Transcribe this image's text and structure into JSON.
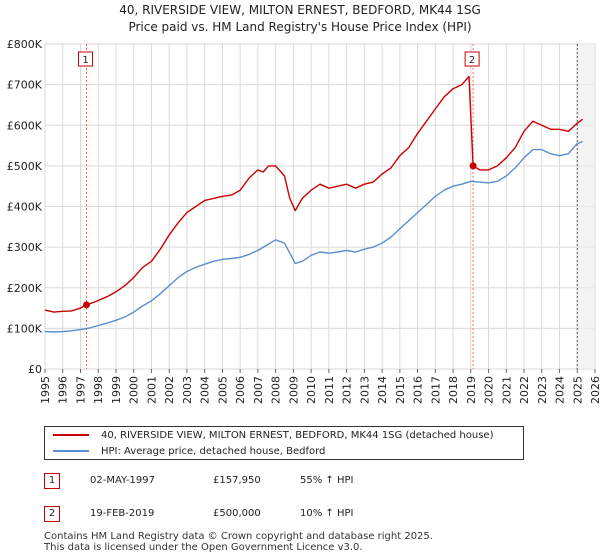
{
  "chart_data": {
    "type": "line",
    "title": "40, RIVERSIDE VIEW, MILTON ERNEST, BEDFORD, MK44 1SG",
    "subtitle": "Price paid vs. HM Land Registry's House Price Index (HPI)",
    "xlim": [
      1995,
      2026
    ],
    "ylim": [
      0,
      800000
    ],
    "y_ticks": [
      {
        "value": 0,
        "label": "£0"
      },
      {
        "value": 100000,
        "label": "£100K"
      },
      {
        "value": 200000,
        "label": "£200K"
      },
      {
        "value": 300000,
        "label": "£300K"
      },
      {
        "value": 400000,
        "label": "£400K"
      },
      {
        "value": 500000,
        "label": "£500K"
      },
      {
        "value": 600000,
        "label": "£600K"
      },
      {
        "value": 700000,
        "label": "£700K"
      },
      {
        "value": 800000,
        "label": "£800K"
      }
    ],
    "x_ticks": [
      "1995",
      "1996",
      "1997",
      "1998",
      "1999",
      "2000",
      "2001",
      "2002",
      "2003",
      "2004",
      "2005",
      "2006",
      "2007",
      "2008",
      "2009",
      "2010",
      "2011",
      "2012",
      "2013",
      "2014",
      "2015",
      "2016",
      "2017",
      "2018",
      "2019",
      "2020",
      "2021",
      "2022",
      "2023",
      "2024",
      "2025",
      "2026"
    ],
    "series": [
      {
        "name": "40, RIVERSIDE VIEW, MILTON ERNEST, BEDFORD, MK44 1SG (detached house)",
        "color": "#cc0000",
        "x": [
          1995.0,
          1995.5,
          1996.0,
          1996.5,
          1997.0,
          1997.34,
          1997.8,
          1998.5,
          1999.0,
          1999.5,
          2000.0,
          2000.5,
          2001.0,
          2001.5,
          2002.0,
          2002.5,
          2003.0,
          2003.5,
          2004.0,
          2004.5,
          2005.0,
          2005.5,
          2006.0,
          2006.5,
          2007.0,
          2007.3,
          2007.6,
          2008.0,
          2008.5,
          2008.8,
          2009.1,
          2009.5,
          2010.0,
          2010.5,
          2011.0,
          2011.5,
          2012.0,
          2012.5,
          2013.0,
          2013.5,
          2014.0,
          2014.5,
          2015.0,
          2015.5,
          2016.0,
          2016.5,
          2017.0,
          2017.5,
          2018.0,
          2018.5,
          2018.9,
          2019.13,
          2019.5,
          2020.0,
          2020.5,
          2021.0,
          2021.5,
          2022.0,
          2022.5,
          2023.0,
          2023.5,
          2024.0,
          2024.5,
          2025.0,
          2025.3
        ],
        "y": [
          145000,
          140000,
          142000,
          143000,
          150000,
          157950,
          165000,
          178000,
          190000,
          205000,
          225000,
          250000,
          265000,
          295000,
          330000,
          360000,
          385000,
          400000,
          415000,
          420000,
          425000,
          428000,
          440000,
          470000,
          490000,
          485000,
          500000,
          500000,
          475000,
          420000,
          390000,
          420000,
          440000,
          455000,
          445000,
          450000,
          455000,
          445000,
          455000,
          460000,
          480000,
          495000,
          525000,
          545000,
          580000,
          610000,
          640000,
          670000,
          690000,
          700000,
          720000,
          500000,
          490000,
          490000,
          500000,
          520000,
          545000,
          585000,
          610000,
          600000,
          590000,
          590000,
          585000,
          605000,
          615000
        ]
      },
      {
        "name": "HPI: Average price, detached house, Bedford",
        "color": "#5b8ed0",
        "x": [
          1995.0,
          1995.5,
          1996.0,
          1996.5,
          1997.0,
          1997.5,
          1998.0,
          1998.5,
          1999.0,
          1999.5,
          2000.0,
          2000.5,
          2001.0,
          2001.5,
          2002.0,
          2002.5,
          2003.0,
          2003.5,
          2004.0,
          2004.5,
          2005.0,
          2005.5,
          2006.0,
          2006.5,
          2007.0,
          2007.5,
          2008.0,
          2008.5,
          2008.8,
          2009.1,
          2009.5,
          2010.0,
          2010.5,
          2011.0,
          2011.5,
          2012.0,
          2012.5,
          2013.0,
          2013.5,
          2014.0,
          2014.5,
          2015.0,
          2015.5,
          2016.0,
          2016.5,
          2017.0,
          2017.5,
          2018.0,
          2018.5,
          2019.0,
          2019.5,
          2020.0,
          2020.5,
          2021.0,
          2021.5,
          2022.0,
          2022.5,
          2023.0,
          2023.5,
          2024.0,
          2024.5,
          2025.0,
          2025.3
        ],
        "y": [
          92000,
          91000,
          92000,
          94000,
          97000,
          101000,
          107000,
          113000,
          120000,
          128000,
          140000,
          155000,
          168000,
          185000,
          205000,
          225000,
          240000,
          250000,
          258000,
          265000,
          270000,
          272000,
          275000,
          282000,
          292000,
          305000,
          318000,
          310000,
          285000,
          260000,
          265000,
          280000,
          288000,
          285000,
          288000,
          292000,
          288000,
          295000,
          300000,
          310000,
          325000,
          345000,
          365000,
          385000,
          405000,
          425000,
          440000,
          450000,
          455000,
          462000,
          460000,
          458000,
          462000,
          475000,
          495000,
          520000,
          540000,
          540000,
          530000,
          525000,
          530000,
          555000,
          560000
        ]
      }
    ],
    "annotations": [
      {
        "label": "1",
        "x": 1997.34,
        "y": 157950
      },
      {
        "label": "2",
        "x": 2019.13,
        "y": 500000
      }
    ],
    "shade_from": 2025.0
  },
  "legend": {
    "items": [
      {
        "label": "40, RIVERSIDE VIEW, MILTON ERNEST, BEDFORD, MK44 1SG (detached house)",
        "color": "#cc0000"
      },
      {
        "label": "HPI: Average price, detached house, Bedford",
        "color": "#5b8ed0"
      }
    ]
  },
  "sales": [
    {
      "num": "1",
      "date": "02-MAY-1997",
      "price": "£157,950",
      "hpi": "55% ↑ HPI"
    },
    {
      "num": "2",
      "date": "19-FEB-2019",
      "price": "£500,000",
      "hpi": "10% ↑ HPI"
    }
  ],
  "footer": {
    "line1": "Contains HM Land Registry data © Crown copyright and database right 2025.",
    "line2": "This data is licensed under the Open Government Licence v3.0."
  }
}
